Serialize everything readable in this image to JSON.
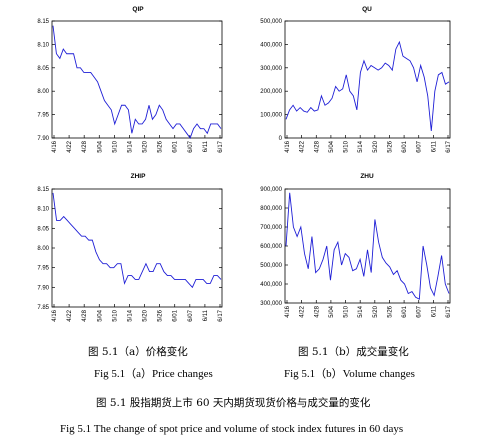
{
  "date_ticks": [
    "4/16",
    "4/22",
    "4/28",
    "5/04",
    "5/10",
    "5/14",
    "5/20",
    "5/26",
    "6/01",
    "6/07",
    "6/11",
    "6/17"
  ],
  "chart_data": [
    {
      "type": "line",
      "title": "QIP",
      "ylim": [
        7.9,
        8.15
      ],
      "yticks": [
        "8.15",
        "8.10",
        "8.05",
        "8.00",
        "7.95",
        "7.90"
      ],
      "values": [
        8.14,
        8.08,
        8.07,
        8.09,
        8.08,
        8.08,
        8.08,
        8.05,
        8.05,
        8.04,
        8.04,
        8.04,
        8.03,
        8.02,
        8.0,
        7.98,
        7.97,
        7.96,
        7.93,
        7.95,
        7.97,
        7.97,
        7.96,
        7.91,
        7.94,
        7.93,
        7.93,
        7.94,
        7.97,
        7.94,
        7.95,
        7.97,
        7.96,
        7.94,
        7.93,
        7.92,
        7.93,
        7.93,
        7.92,
        7.91,
        7.9,
        7.92,
        7.93,
        7.92,
        7.92,
        7.91,
        7.93,
        7.93,
        7.93,
        7.92
      ]
    },
    {
      "type": "line",
      "title": "QU",
      "ylim": [
        0,
        500000
      ],
      "yticks": [
        "500,000",
        "400,000",
        "300,000",
        "200,000",
        "100,000",
        "0"
      ],
      "values": [
        80000,
        120000,
        140000,
        115000,
        130000,
        115000,
        110000,
        130000,
        115000,
        120000,
        180000,
        140000,
        150000,
        170000,
        220000,
        200000,
        210000,
        270000,
        200000,
        180000,
        120000,
        280000,
        330000,
        290000,
        310000,
        300000,
        290000,
        300000,
        320000,
        310000,
        290000,
        380000,
        410000,
        350000,
        340000,
        330000,
        300000,
        240000,
        310000,
        260000,
        180000,
        30000,
        200000,
        270000,
        280000,
        230000,
        240000
      ]
    },
    {
      "type": "line",
      "title": "ZHIP",
      "ylim": [
        7.85,
        8.15
      ],
      "yticks": [
        "8.15",
        "8.10",
        "8.05",
        "8.00",
        "7.95",
        "7.90",
        "7.85"
      ],
      "values": [
        8.14,
        8.07,
        8.07,
        8.08,
        8.07,
        8.06,
        8.05,
        8.04,
        8.03,
        8.03,
        8.02,
        8.02,
        7.99,
        7.97,
        7.96,
        7.96,
        7.95,
        7.95,
        7.96,
        7.96,
        7.91,
        7.93,
        7.93,
        7.92,
        7.92,
        7.94,
        7.96,
        7.94,
        7.94,
        7.96,
        7.96,
        7.94,
        7.93,
        7.93,
        7.92,
        7.92,
        7.92,
        7.92,
        7.91,
        7.9,
        7.92,
        7.92,
        7.92,
        7.91,
        7.91,
        7.93,
        7.93,
        7.92
      ]
    },
    {
      "type": "line",
      "title": "ZHU",
      "ylim": [
        300000,
        900000
      ],
      "yticks": [
        "900,000",
        "800,000",
        "700,000",
        "600,000",
        "500,000",
        "400,000",
        "300,000"
      ],
      "values": [
        600000,
        880000,
        700000,
        650000,
        700000,
        560000,
        480000,
        650000,
        460000,
        480000,
        530000,
        600000,
        420000,
        580000,
        620000,
        500000,
        560000,
        540000,
        470000,
        480000,
        530000,
        440000,
        580000,
        460000,
        740000,
        620000,
        540000,
        510000,
        490000,
        450000,
        470000,
        420000,
        400000,
        350000,
        360000,
        330000,
        320000,
        600000,
        500000,
        380000,
        340000,
        440000,
        550000,
        400000,
        350000
      ]
    }
  ],
  "captions": {
    "a_cn": "图 5.1（a）价格变化",
    "b_cn": "图 5.1（b）成交量变化",
    "a_en": "Fig 5.1（a）Price changes",
    "b_en": "Fig 5.1（b）Volume changes",
    "main_cn": "图 5.1  股指期货上市 60 天内期货现货价格与成交量的变化",
    "main_en": "Fig 5.1 The change of spot price and volume of stock index futures in 60 days"
  }
}
